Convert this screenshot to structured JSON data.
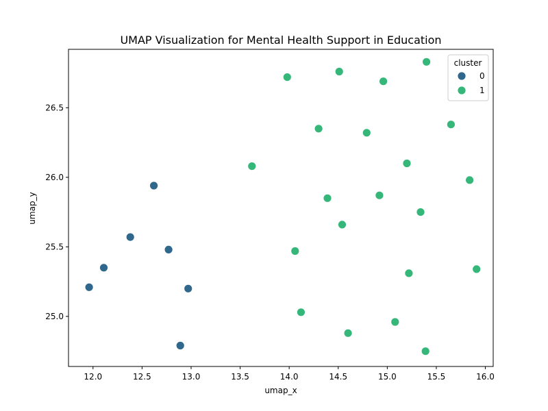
{
  "chart_data": {
    "type": "scatter",
    "title": "UMAP Visualization for Mental Health Support in Education",
    "xlabel": "umap_x",
    "ylabel": "umap_y",
    "xlim": [
      11.75,
      16.08
    ],
    "ylim": [
      24.64,
      26.92
    ],
    "xticks": [
      "12.0",
      "12.5",
      "13.0",
      "13.5",
      "14.0",
      "14.5",
      "15.0",
      "15.5",
      "16.0"
    ],
    "yticks": [
      "25.0",
      "25.5",
      "26.0",
      "26.5"
    ],
    "grid": false,
    "legend": {
      "title": "cluster",
      "placement": "top-right"
    },
    "series": [
      {
        "name": "0",
        "color": "#30678d",
        "points": [
          [
            12.62,
            25.94
          ],
          [
            12.38,
            25.57
          ],
          [
            12.77,
            25.48
          ],
          [
            12.11,
            25.35
          ],
          [
            11.96,
            25.21
          ],
          [
            12.97,
            25.2
          ],
          [
            12.89,
            24.79
          ]
        ]
      },
      {
        "name": "1",
        "color": "#35b779",
        "points": [
          [
            13.98,
            26.72
          ],
          [
            14.51,
            26.76
          ],
          [
            14.96,
            26.69
          ],
          [
            15.4,
            26.83
          ],
          [
            14.3,
            26.35
          ],
          [
            14.79,
            26.32
          ],
          [
            15.65,
            26.38
          ],
          [
            13.62,
            26.08
          ],
          [
            15.2,
            26.1
          ],
          [
            15.84,
            25.98
          ],
          [
            14.39,
            25.85
          ],
          [
            14.92,
            25.87
          ],
          [
            15.34,
            25.75
          ],
          [
            14.54,
            25.66
          ],
          [
            14.06,
            25.47
          ],
          [
            15.91,
            25.34
          ],
          [
            15.22,
            25.31
          ],
          [
            14.12,
            25.03
          ],
          [
            15.08,
            24.96
          ],
          [
            14.6,
            24.88
          ],
          [
            15.39,
            24.75
          ]
        ]
      }
    ]
  }
}
